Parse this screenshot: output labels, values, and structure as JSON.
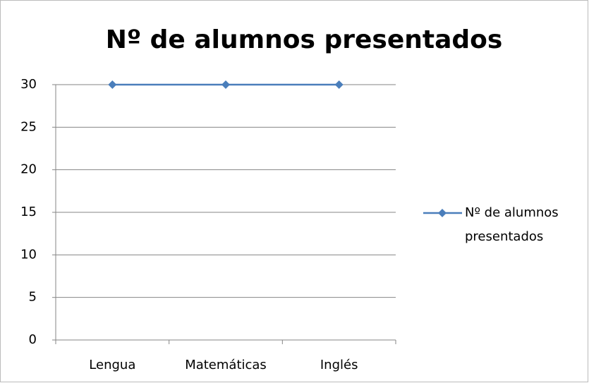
{
  "chart_data": {
    "type": "line",
    "title": "Nº de alumnos presentados",
    "categories": [
      "Lengua",
      "Matemáticas",
      "Inglés"
    ],
    "series": [
      {
        "name": "Nº de alumnos presentados",
        "color": "#4a7ebb",
        "values": [
          30,
          30,
          30
        ]
      }
    ],
    "ylim": [
      0,
      30
    ],
    "yticks": [
      0,
      5,
      10,
      15,
      20,
      25,
      30
    ],
    "grid": true,
    "legend": "right"
  }
}
